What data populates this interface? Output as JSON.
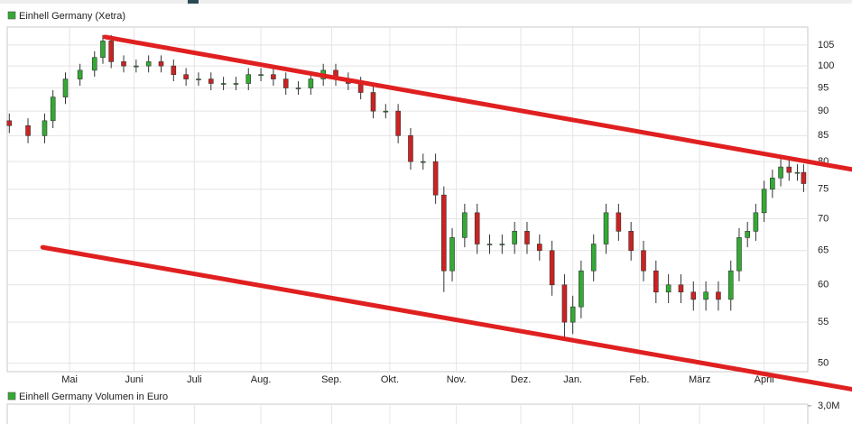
{
  "chart_data": [
    {
      "type": "candlestick",
      "log_scale": true,
      "grid": true,
      "legend": "top-left",
      "xlim": [
        0,
        385
      ],
      "xticks": [
        {
          "value": 30,
          "label": "Mai"
        },
        {
          "value": 61,
          "label": "Juni"
        },
        {
          "value": 90,
          "label": "Juli"
        },
        {
          "value": 122,
          "label": "Aug."
        },
        {
          "value": 156,
          "label": "Sep."
        },
        {
          "value": 184,
          "label": "Okt."
        },
        {
          "value": 216,
          "label": "Nov."
        },
        {
          "value": 247,
          "label": "Dez."
        },
        {
          "value": 272,
          "label": "Jan."
        },
        {
          "value": 304,
          "label": "Feb."
        },
        {
          "value": 333,
          "label": "März"
        },
        {
          "value": 364,
          "label": "April"
        }
      ],
      "ylim": [
        49,
        109.5
      ],
      "yticks": [
        50,
        55,
        60,
        65,
        70,
        75,
        80,
        85,
        90,
        95,
        100,
        105
      ],
      "series": [
        {
          "name": "Einhell Germany (Xetra)",
          "color": "#33aa33",
          "down_color": "#cc2222",
          "x": [
            1,
            10,
            18,
            22,
            28,
            35,
            42,
            46,
            50,
            56,
            62,
            68,
            74,
            80,
            86,
            92,
            98,
            104,
            110,
            116,
            122,
            128,
            134,
            140,
            146,
            152,
            158,
            164,
            170,
            176,
            182,
            188,
            194,
            200,
            206,
            210,
            214,
            220,
            226,
            232,
            238,
            244,
            250,
            256,
            262,
            268,
            272,
            276,
            282,
            288,
            294,
            300,
            306,
            312,
            318,
            324,
            330,
            336,
            342,
            348,
            352,
            356,
            360,
            364,
            368,
            372,
            376,
            380,
            383
          ],
          "open": [
            88,
            87,
            85,
            88,
            93,
            97,
            99,
            102,
            106,
            101,
            100,
            100,
            101,
            100,
            98,
            97,
            97,
            96,
            96,
            96,
            98,
            98,
            97,
            95,
            95,
            97,
            99,
            97,
            96,
            94,
            90,
            90,
            85,
            80,
            80,
            74,
            62,
            67,
            71,
            66,
            66,
            66,
            68,
            66,
            65,
            60,
            55,
            57,
            62,
            66,
            71,
            68,
            65,
            62,
            59,
            60,
            59,
            58,
            59,
            58,
            62,
            67,
            68,
            71,
            75,
            77,
            79,
            78,
            78
          ],
          "high": [
            89.5,
            88.5,
            89.5,
            94.5,
            98.5,
            100.5,
            103.5,
            107.5,
            107.5,
            102.5,
            101.5,
            102.5,
            102.5,
            101.5,
            99.5,
            98.5,
            98.5,
            97.5,
            97.5,
            99.5,
            99.5,
            99.5,
            98.5,
            96.5,
            98.5,
            100.5,
            100.5,
            98.5,
            97.5,
            95.5,
            91.5,
            91.5,
            86.5,
            81.5,
            81.5,
            75.5,
            68.5,
            72.5,
            72.5,
            67.5,
            67.5,
            69.5,
            69.5,
            67.5,
            66.5,
            61.5,
            58.5,
            63.5,
            67.5,
            72.5,
            72.5,
            69.5,
            66.5,
            63.5,
            61.5,
            61.5,
            60.5,
            60.5,
            60.5,
            63.5,
            68.5,
            69.5,
            72.5,
            76.5,
            78.5,
            80.5,
            80.5,
            79.5,
            79.5
          ],
          "low": [
            85.5,
            83.5,
            83.5,
            86.5,
            91.5,
            95.5,
            97.5,
            100.5,
            99.5,
            98.5,
            98.5,
            98.5,
            98.5,
            96.5,
            95.5,
            95.5,
            94.5,
            94.5,
            94.5,
            94.5,
            96.5,
            95.5,
            93.5,
            93.5,
            93.5,
            95.5,
            95.5,
            94.5,
            92.5,
            88.5,
            88.5,
            83.5,
            78.5,
            78.5,
            72.5,
            59,
            60.5,
            65.5,
            64.5,
            64.5,
            64.5,
            64.5,
            64.5,
            63.5,
            58.5,
            53,
            53.5,
            55.5,
            60.5,
            64.5,
            66.5,
            63.5,
            60.5,
            57.5,
            57.5,
            57.5,
            56.5,
            56.5,
            56.5,
            56.5,
            60.5,
            65.5,
            66.5,
            69.5,
            73.5,
            75.5,
            76.5,
            76.5,
            74.5
          ],
          "close": [
            87,
            85,
            88,
            93,
            97,
            99,
            102,
            106,
            101,
            100,
            100,
            101,
            100,
            98,
            97,
            97,
            96,
            96,
            96,
            98,
            98,
            97,
            95,
            95,
            97,
            99,
            97,
            96,
            94,
            90,
            90,
            85,
            80,
            80,
            74,
            62,
            67,
            71,
            66,
            66,
            66,
            68,
            66,
            65,
            60,
            55,
            57,
            62,
            66,
            71,
            68,
            65,
            62,
            59,
            60,
            59,
            58,
            59,
            58,
            62,
            67,
            68,
            71,
            75,
            77,
            79,
            78,
            78,
            76
          ]
        }
      ],
      "trendlines": [
        {
          "color": "#e02020",
          "x": [
            47,
            407
          ],
          "y": [
            107,
            78.5
          ]
        },
        {
          "color": "#e02020",
          "x": [
            17,
            407
          ],
          "y": [
            65.5,
            47
          ]
        }
      ]
    },
    {
      "type": "bar",
      "title": "Einhell Germany Volumen in Euro",
      "color": "#33aa33",
      "ylim": [
        0,
        3200000
      ],
      "yticks": [
        {
          "value": 3000000,
          "label": "3,0M"
        }
      ]
    }
  ]
}
